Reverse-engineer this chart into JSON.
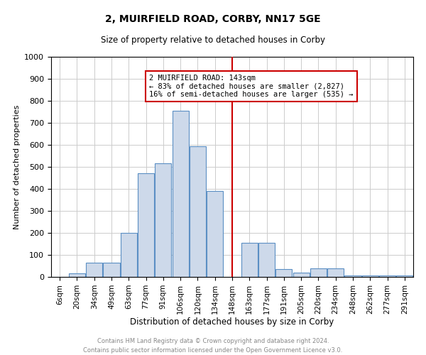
{
  "title1": "2, MUIRFIELD ROAD, CORBY, NN17 5GE",
  "title2": "Size of property relative to detached houses in Corby",
  "xlabel": "Distribution of detached houses by size in Corby",
  "ylabel": "Number of detached properties",
  "footnote": "Contains HM Land Registry data © Crown copyright and database right 2024.\nContains public sector information licensed under the Open Government Licence v3.0.",
  "bar_labels": [
    "6sqm",
    "20sqm",
    "34sqm",
    "49sqm",
    "63sqm",
    "77sqm",
    "91sqm",
    "106sqm",
    "120sqm",
    "134sqm",
    "148sqm",
    "163sqm",
    "177sqm",
    "191sqm",
    "205sqm",
    "220sqm",
    "234sqm",
    "248sqm",
    "262sqm",
    "277sqm",
    "291sqm"
  ],
  "bar_values": [
    0,
    15,
    65,
    65,
    200,
    470,
    515,
    755,
    595,
    390,
    0,
    155,
    155,
    35,
    20,
    40,
    40,
    5,
    5,
    5,
    5
  ],
  "bar_color": "#cdd9ea",
  "bar_edge_color": "#5b8fc4",
  "ylim": [
    0,
    1000
  ],
  "yticks": [
    0,
    100,
    200,
    300,
    400,
    500,
    600,
    700,
    800,
    900,
    1000
  ],
  "vline_color": "#cc0000",
  "vline_x_index": 10,
  "annotation_text": "2 MUIRFIELD ROAD: 143sqm\n← 83% of detached houses are smaller (2,827)\n16% of semi-detached houses are larger (535) →",
  "annotation_box_color": "#ffffff",
  "annotation_box_edge": "#cc0000",
  "background_color": "#ffffff",
  "grid_color": "#cccccc"
}
